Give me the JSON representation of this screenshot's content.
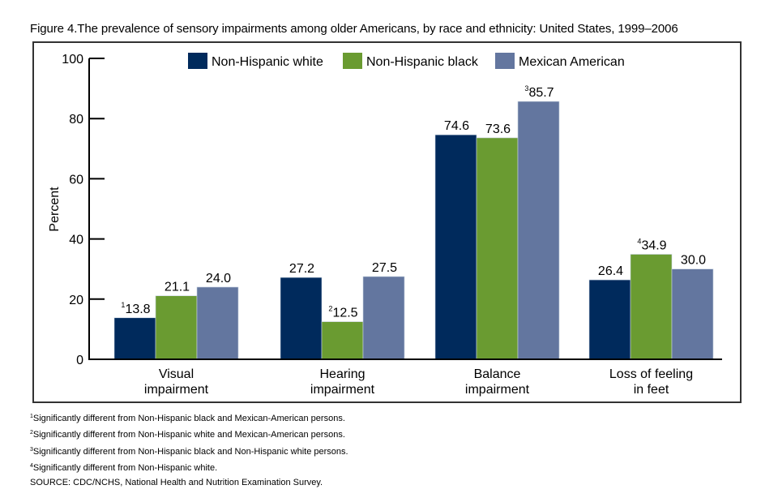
{
  "chart_data": {
    "type": "bar",
    "title": "Figure 4.The prevalence of sensory impairments among older Americans, by race and ethnicity: United States, 1999–2006",
    "xlabel": "",
    "ylabel": "Percent",
    "ylim": [
      0,
      100
    ],
    "yticks": [
      0,
      20,
      40,
      60,
      80,
      100
    ],
    "grid": false,
    "legend_position": "top-center",
    "categories": [
      [
        "Visual",
        "impairment"
      ],
      [
        "Hearing",
        "impairment"
      ],
      [
        "Balance",
        "impairment"
      ],
      [
        "Loss of feeling",
        "in feet"
      ]
    ],
    "series": [
      {
        "name": "Non-Hispanic white",
        "color": "#002a5c",
        "values": [
          13.8,
          27.2,
          74.6,
          26.4
        ],
        "labels": [
          "13.8",
          "27.2",
          "74.6",
          "26.4"
        ],
        "footnotes": [
          "1",
          "",
          "",
          ""
        ]
      },
      {
        "name": "Non-Hispanic black",
        "color": "#6a9b31",
        "values": [
          21.1,
          12.5,
          73.6,
          34.9
        ],
        "labels": [
          "21.1",
          "12.5",
          "73.6",
          "34.9"
        ],
        "footnotes": [
          "",
          "2",
          "",
          "4"
        ]
      },
      {
        "name": "Mexican American",
        "color": "#63769f",
        "values": [
          24.0,
          27.5,
          85.7,
          30.0
        ],
        "labels": [
          "24.0",
          "27.5",
          "85.7",
          "30.0"
        ],
        "footnotes": [
          "",
          "",
          "3",
          ""
        ]
      }
    ]
  },
  "notes": [
    {
      "mark": "1",
      "text": "Significantly different from Non-Hispanic black and Mexican-American persons."
    },
    {
      "mark": "2",
      "text": "Significantly different from Non-Hispanic white and Mexican-American persons."
    },
    {
      "mark": "3",
      "text": "Significantly different from Non-Hispanic black and Non-Hispanic white persons."
    },
    {
      "mark": "4",
      "text": "Significantly different from Non-Hispanic white."
    }
  ],
  "source": "SOURCE: CDC/NCHS, National Health and Nutrition Examination Survey."
}
